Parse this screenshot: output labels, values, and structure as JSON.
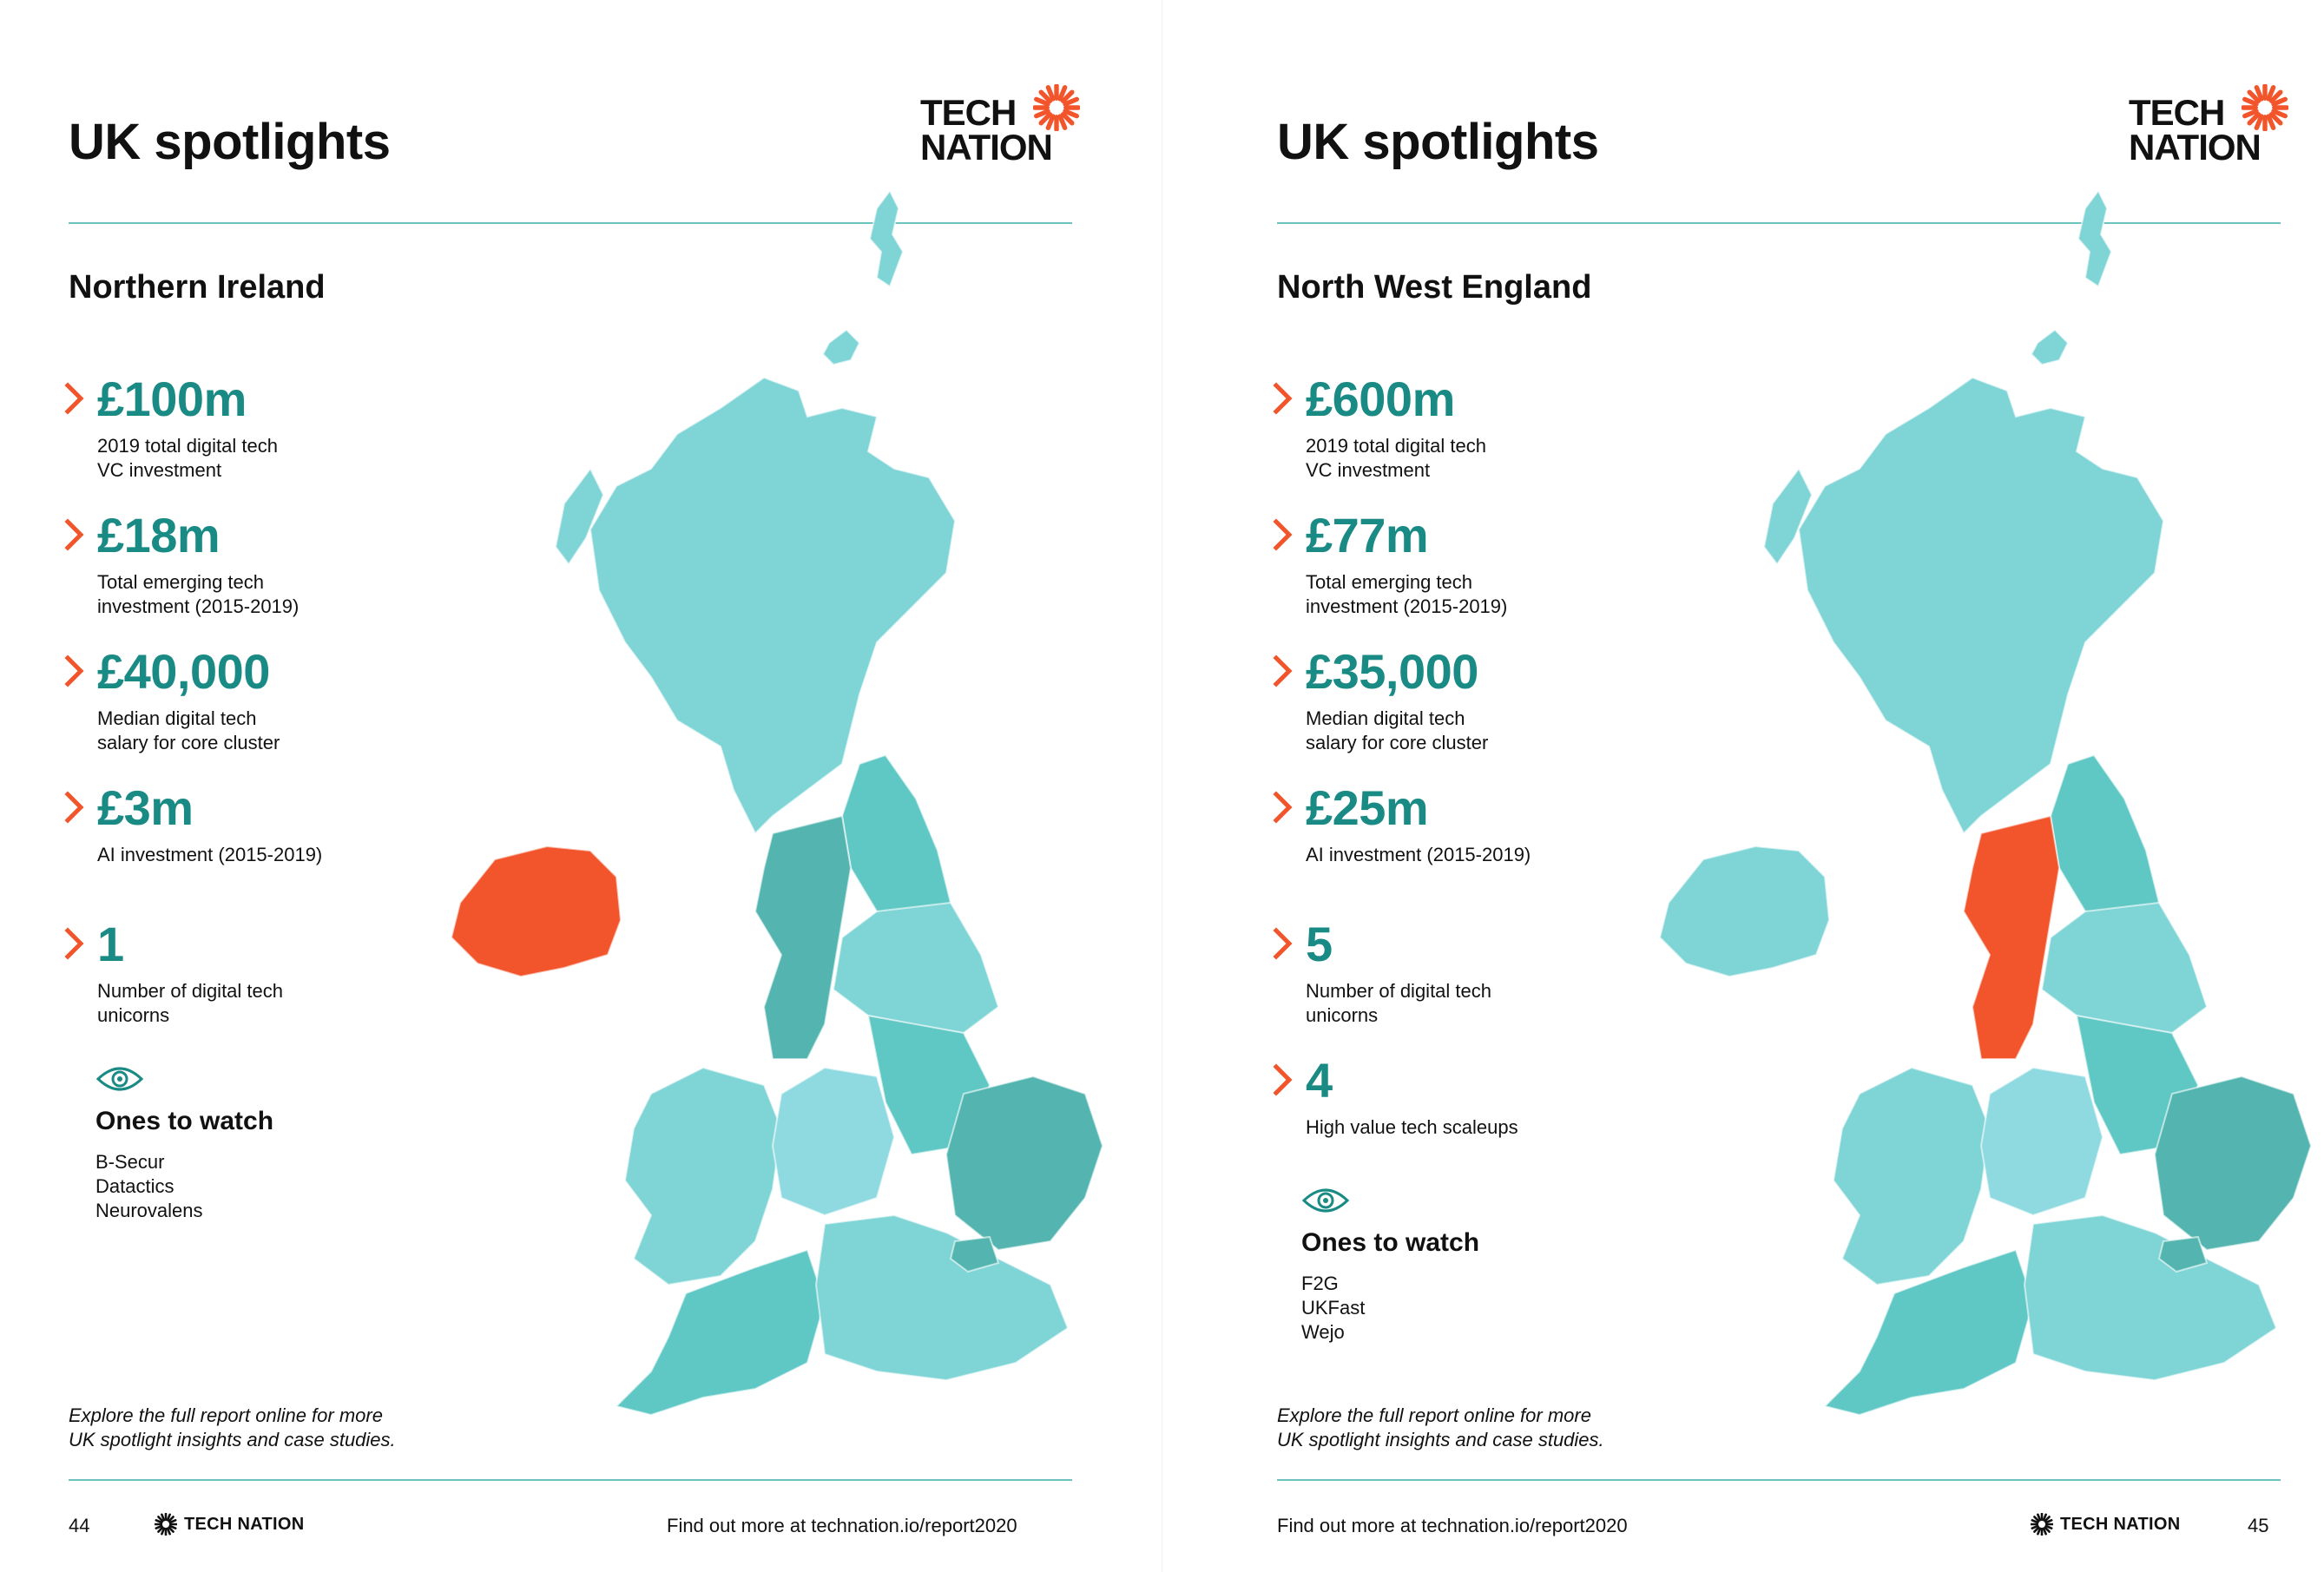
{
  "colors": {
    "accent_teal": "#1a8a84",
    "map_light": "#7fd4d6",
    "map_mid": "#5fc8c4",
    "map_dark": "#54b5b0",
    "highlight": "#f2552c",
    "rule": "#6cc3bd"
  },
  "icons": {
    "stat_marker": "chevron-right-icon",
    "watch_marker": "eye-icon",
    "logo_mark": "sunburst-icon"
  },
  "left": {
    "title": "UK spotlights",
    "logo_line1": "TECH",
    "logo_line2": "NATION",
    "region": "Northern Ireland",
    "stats": [
      {
        "value": "£100m",
        "desc": [
          "2019 total digital tech",
          "VC investment"
        ]
      },
      {
        "value": "£18m",
        "desc": [
          "Total emerging tech",
          "investment (2015-2019)"
        ]
      },
      {
        "value": "£40,000",
        "desc": [
          "Median digital tech",
          "salary for core cluster"
        ]
      },
      {
        "value": "£3m",
        "desc": [
          "AI investment (2015-2019)"
        ]
      },
      {
        "value": "1",
        "desc": [
          "Number of digital tech",
          "unicorns"
        ]
      }
    ],
    "watch_title": "Ones to watch",
    "watch_items": [
      "B-Secur",
      "Datactics",
      "Neurovalens"
    ],
    "explore": [
      "Explore the full report online for more",
      "UK spotlight insights and case studies."
    ],
    "page_number": "44",
    "footer_brand": "TECH NATION",
    "footer_link": "Find out more at technation.io/report2020",
    "highlighted_region": "northern-ireland"
  },
  "right": {
    "title": "UK spotlights",
    "logo_line1": "TECH",
    "logo_line2": "NATION",
    "region": "North West England",
    "stats": [
      {
        "value": "£600m",
        "desc": [
          "2019 total digital tech",
          "VC investment"
        ]
      },
      {
        "value": "£77m",
        "desc": [
          "Total emerging tech",
          "investment (2015-2019)"
        ]
      },
      {
        "value": "£35,000",
        "desc": [
          "Median digital tech",
          "salary for core cluster"
        ]
      },
      {
        "value": "£25m",
        "desc": [
          "AI investment (2015-2019)"
        ]
      },
      {
        "value": "5",
        "desc": [
          "Number of digital tech",
          "unicorns"
        ]
      },
      {
        "value": "4",
        "desc": [
          "High value tech scaleups"
        ]
      }
    ],
    "watch_title": "Ones to watch",
    "watch_items": [
      "F2G",
      "UKFast",
      "Wejo"
    ],
    "explore": [
      "Explore the full report online for more",
      "UK spotlight insights and case studies."
    ],
    "page_number": "45",
    "footer_brand": "TECH NATION",
    "footer_link": "Find out more at technation.io/report2020",
    "highlighted_region": "north-west-england"
  }
}
